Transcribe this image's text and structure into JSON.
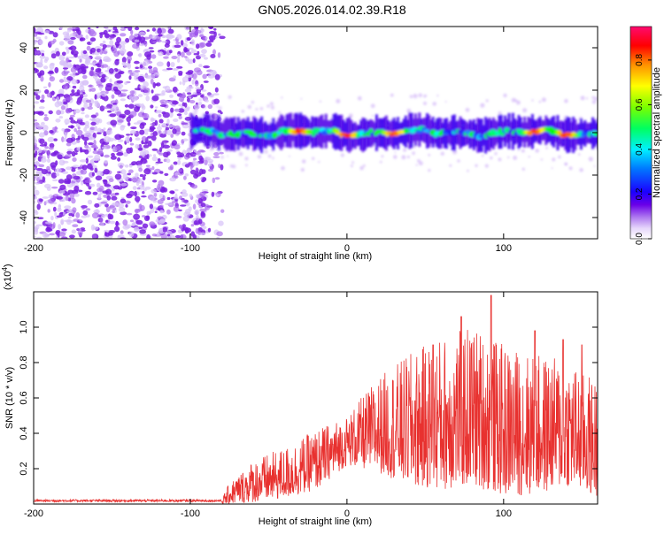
{
  "title": "GN05.2026.014.02.39.R18",
  "chart_data": [
    {
      "type": "heatmap",
      "title": "GN05.2026.014.02.39.R18",
      "xlabel": "Height of straight line (km)",
      "ylabel": "Frequency (Hz)",
      "xlim": [
        -200,
        160
      ],
      "ylim": [
        -50,
        50
      ],
      "xticks": [
        -200,
        -100,
        0,
        100
      ],
      "xtick_labels": [
        "-200",
        "-100",
        "0",
        "100"
      ],
      "yticks": [
        -40,
        -20,
        0,
        20,
        40
      ],
      "ytick_labels": [
        "-40",
        "-20",
        "0",
        "20",
        "40"
      ],
      "noise_region_x": [
        -200,
        -85
      ],
      "signal_band": {
        "x_start": -100,
        "x_end": 160,
        "center_freq_hz": 0,
        "half_width_hz": 6,
        "peak_amplitude_x": [
          -30,
          0,
          30,
          120,
          140
        ]
      },
      "colorbar": {
        "label": "Normalized spectral amplitude",
        "range": [
          0,
          0.95
        ],
        "ticks": [
          0.0,
          0.2,
          0.4,
          0.6,
          0.8
        ],
        "tick_labels": [
          "0.0",
          "0.2",
          "0.4",
          "0.6",
          "0.8"
        ],
        "colors": [
          "#ffffff",
          "#d8c6f8",
          "#8e2ce6",
          "#2a00ff",
          "#00ffff",
          "#00ff00",
          "#ffff00",
          "#ff8000",
          "#ff0000",
          "#ff0080"
        ]
      }
    },
    {
      "type": "line",
      "xlabel": "Height of straight line (km)",
      "ylabel": "SNR (10 * v/v)",
      "y_scale_label": "(x10",
      "y_scale_exp": "4",
      "y_scale_close": ")",
      "xlim": [
        -200,
        160
      ],
      "ylim": [
        0,
        1.2
      ],
      "xticks": [
        -200,
        -100,
        0,
        100
      ],
      "xtick_labels": [
        "-200",
        "-100",
        "0",
        "100"
      ],
      "yticks": [
        0.2,
        0.4,
        0.6,
        0.8,
        1.0
      ],
      "ytick_labels": [
        "0.2",
        "0.4",
        "0.6",
        "0.8",
        "1.0"
      ],
      "series": [
        {
          "name": "SNR",
          "color": "#e8312f",
          "x_start": -200,
          "x_end": 160,
          "envelope_x": [
            -200,
            -80,
            -75,
            -60,
            -40,
            -20,
            0,
            20,
            40,
            60,
            80,
            100,
            120,
            140,
            160
          ],
          "envelope_max": [
            0.03,
            0.03,
            0.12,
            0.25,
            0.32,
            0.42,
            0.5,
            0.72,
            0.85,
            0.95,
            1.02,
            0.9,
            0.85,
            0.82,
            0.7
          ],
          "envelope_min": [
            0.0,
            0.0,
            0.0,
            0.01,
            0.03,
            0.08,
            0.22,
            0.18,
            0.1,
            0.08,
            0.1,
            0.05,
            0.05,
            0.1,
            0.04
          ],
          "peaks": [
            [
              92,
              1.18
            ],
            [
              73,
              1.06
            ],
            [
              55,
              0.9
            ],
            [
              120,
              0.98
            ],
            [
              138,
              0.93
            ],
            [
              150,
              0.9
            ]
          ]
        }
      ]
    }
  ]
}
